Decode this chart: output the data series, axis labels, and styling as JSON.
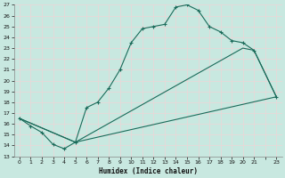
{
  "xlabel": "Humidex (Indice chaleur)",
  "bg_color": "#c8e8e0",
  "grid_color": "#e8d8d8",
  "line_color": "#1a6b5a",
  "xlim": [
    -0.5,
    23.5
  ],
  "ylim": [
    13,
    27
  ],
  "xtick_labels": [
    "0",
    "1",
    "2",
    "3",
    "4",
    "5",
    "6",
    "7",
    "8",
    "9",
    "10",
    "11",
    "12",
    "13",
    "14",
    "15",
    "16",
    "17",
    "18",
    "19",
    "20",
    "21",
    "",
    "23"
  ],
  "xtick_vals": [
    0,
    1,
    2,
    3,
    4,
    5,
    6,
    7,
    8,
    9,
    10,
    11,
    12,
    13,
    14,
    15,
    16,
    17,
    18,
    19,
    20,
    21,
    22,
    23
  ],
  "ytick_vals": [
    13,
    14,
    15,
    16,
    17,
    18,
    19,
    20,
    21,
    22,
    23,
    24,
    25,
    26,
    27
  ],
  "line1_x": [
    0,
    1,
    2,
    3,
    4,
    5,
    6,
    7,
    8,
    9,
    10,
    11,
    12,
    13,
    14,
    15,
    16,
    17,
    18,
    19,
    20,
    21,
    23
  ],
  "line1_y": [
    16.5,
    15.8,
    15.2,
    14.1,
    13.7,
    14.3,
    17.5,
    18.0,
    19.3,
    21.0,
    23.5,
    24.8,
    25.0,
    25.2,
    26.8,
    27.0,
    26.5,
    25.0,
    24.5,
    23.7,
    23.5,
    22.8,
    18.5
  ],
  "line2_x": [
    0,
    5,
    23
  ],
  "line2_y": [
    16.5,
    14.3,
    18.5
  ],
  "line3_x": [
    0,
    5,
    20,
    21,
    23
  ],
  "line3_y": [
    16.5,
    14.3,
    23.0,
    22.8,
    18.5
  ]
}
